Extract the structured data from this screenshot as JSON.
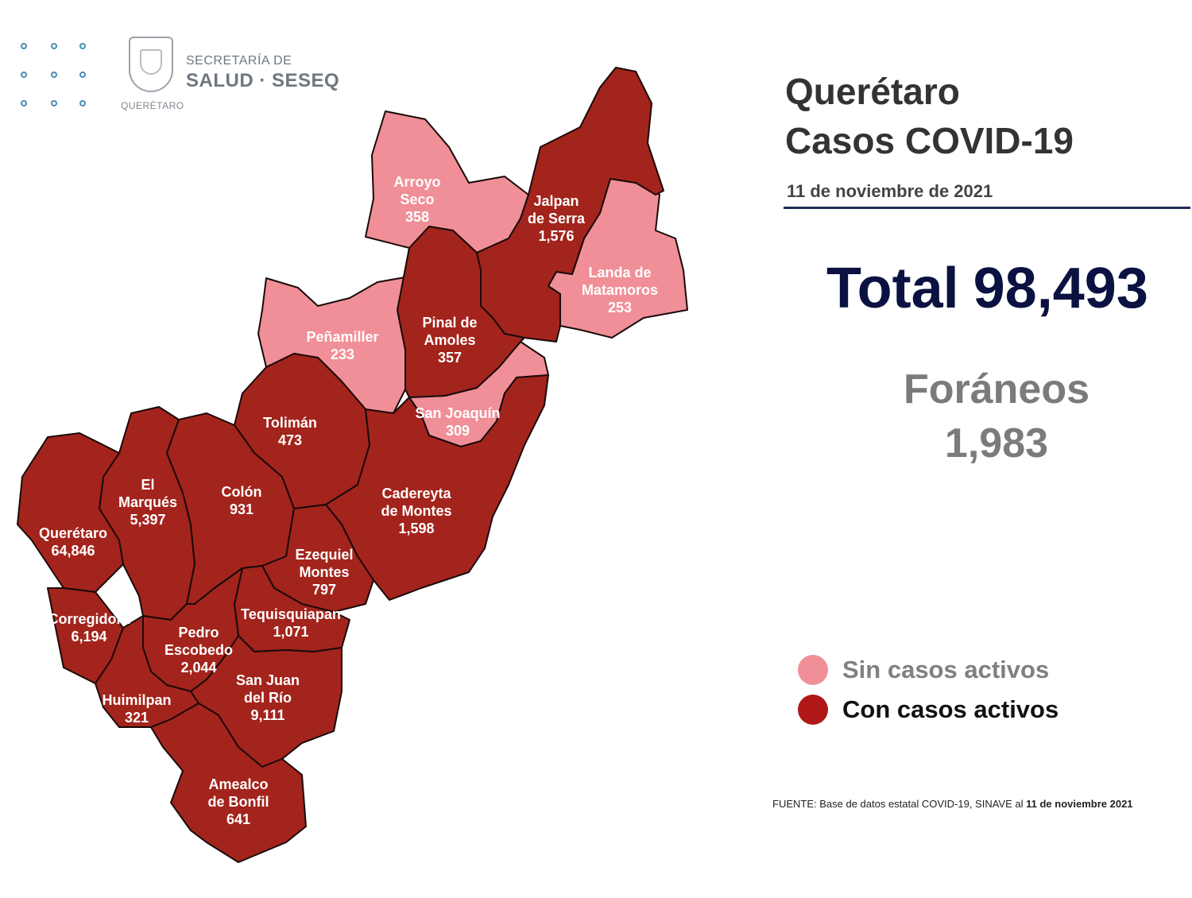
{
  "logo": {
    "line1": "SECRETARÍA DE",
    "line2": "SALUD · SESEQ",
    "seal_caption": "QUERÉTARO"
  },
  "header": {
    "title_line1": "Querétaro",
    "title_line2": "Casos COVID-19",
    "date": "11 de noviembre de 2021"
  },
  "summary": {
    "total_label": "Total",
    "total_value": "98,493",
    "foraneos_label": "Foráneos",
    "foraneos_value": "1,983"
  },
  "legend": {
    "sin": {
      "label": "Sin casos activos",
      "color": "#f08f97"
    },
    "con": {
      "label": "Con casos activos",
      "color": "#b01818"
    }
  },
  "colors": {
    "sin_casos": "#f08f97",
    "con_casos": "#a3241c",
    "border": "#1a0a0a",
    "label_text": "#ffffff"
  },
  "source": {
    "prefix": "FUENTE: Base de datos estatal COVID-19, SINAVE al",
    "date": "11 de noviembre 2021"
  },
  "municipalities": [
    {
      "id": "arroyo-seco",
      "lines": [
        "Arroyo",
        "Seco"
      ],
      "value": "358",
      "status": "sin"
    },
    {
      "id": "jalpan",
      "lines": [
        "Jalpan",
        "de Serra"
      ],
      "value": "1,576",
      "status": "con"
    },
    {
      "id": "landa",
      "lines": [
        "Landa de",
        "Matamoros"
      ],
      "value": "253",
      "status": "sin"
    },
    {
      "id": "pinal",
      "lines": [
        "Pinal de",
        "Amoles"
      ],
      "value": "357",
      "status": "con"
    },
    {
      "id": "penamiller",
      "lines": [
        "Peñamiller"
      ],
      "value": "233",
      "status": "sin"
    },
    {
      "id": "san-joaquin",
      "lines": [
        "San Joaquín"
      ],
      "value": "309",
      "status": "sin"
    },
    {
      "id": "toliman",
      "lines": [
        "Tolimán"
      ],
      "value": "473",
      "status": "con"
    },
    {
      "id": "cadereyta",
      "lines": [
        "Cadereyta",
        "de Montes"
      ],
      "value": "1,598",
      "status": "con"
    },
    {
      "id": "el-marques",
      "lines": [
        "El",
        "Marqués"
      ],
      "value": "5,397",
      "status": "con"
    },
    {
      "id": "colon",
      "lines": [
        "Colón"
      ],
      "value": "931",
      "status": "con"
    },
    {
      "id": "queretaro",
      "lines": [
        "Querétaro"
      ],
      "value": "64,846",
      "status": "con"
    },
    {
      "id": "ezequiel",
      "lines": [
        "Ezequiel",
        "Montes"
      ],
      "value": "797",
      "status": "con"
    },
    {
      "id": "corregidora",
      "lines": [
        "Corregidora"
      ],
      "value": "6,194",
      "status": "con"
    },
    {
      "id": "tequisquiapan",
      "lines": [
        "Tequisquiapan"
      ],
      "value": "1,071",
      "status": "con"
    },
    {
      "id": "pedro-escobedo",
      "lines": [
        "Pedro",
        "Escobedo"
      ],
      "value": "2,044",
      "status": "con"
    },
    {
      "id": "san-juan",
      "lines": [
        "San Juan",
        "del Río"
      ],
      "value": "9,111",
      "status": "con"
    },
    {
      "id": "huimilpan",
      "lines": [
        "Huimilpan"
      ],
      "value": "321",
      "status": "con"
    },
    {
      "id": "amealco",
      "lines": [
        "Amealco",
        "de Bonfil"
      ],
      "value": "641",
      "status": "con"
    }
  ]
}
